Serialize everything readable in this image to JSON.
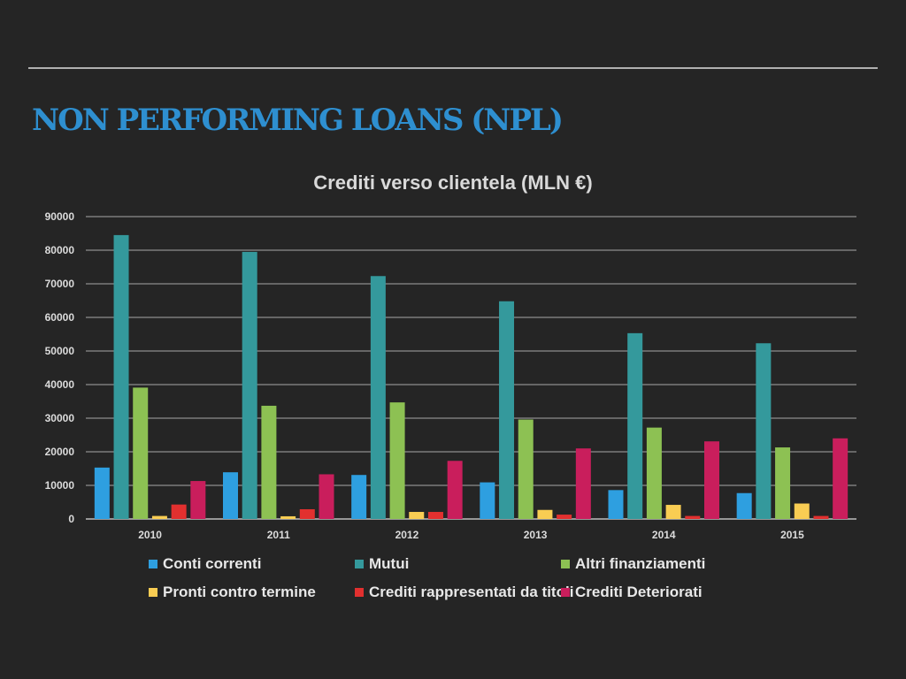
{
  "slide": {
    "title": "NON PERFORMING LOANS (NPL)"
  },
  "chart_data": {
    "type": "bar",
    "title": "Crediti verso clientela (MLN €)",
    "xlabel": "",
    "ylabel": "",
    "categories": [
      "2010",
      "2011",
      "2012",
      "2013",
      "2014",
      "2015"
    ],
    "ylim": [
      0,
      90000
    ],
    "yticks": [
      0,
      10000,
      20000,
      30000,
      40000,
      50000,
      60000,
      70000,
      80000,
      90000
    ],
    "grid": true,
    "legend_position": "bottom",
    "series": [
      {
        "name": "Conti correnti",
        "color": "#2e9fe0",
        "values": [
          15300,
          13900,
          13100,
          10900,
          8600,
          7700
        ]
      },
      {
        "name": "Mutui",
        "color": "#34999c",
        "values": [
          84500,
          79500,
          72300,
          64800,
          55300,
          52300
        ]
      },
      {
        "name": "Altri finanziamenti",
        "color": "#8dc153",
        "values": [
          39100,
          33700,
          34700,
          29600,
          27200,
          21300
        ]
      },
      {
        "name": "Pronti contro termine",
        "color": "#f9cd53",
        "values": [
          900,
          800,
          2100,
          2700,
          4200,
          4600
        ]
      },
      {
        "name": "Crediti rappresentati da titoli",
        "color": "#e2302f",
        "values": [
          4300,
          2900,
          2100,
          1300,
          900,
          900
        ]
      },
      {
        "name": "Crediti Deteriorati",
        "color": "#c91e5c",
        "values": [
          11300,
          13300,
          17300,
          21000,
          23100,
          24000
        ]
      }
    ]
  }
}
